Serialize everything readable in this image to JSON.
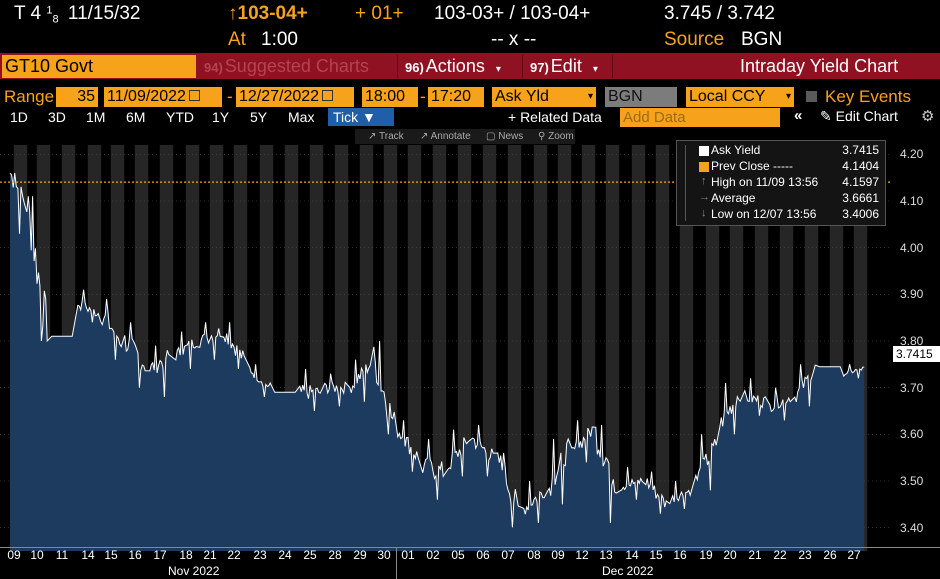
{
  "ticker": {
    "security": "T 4",
    "coupon_frac_num": "1",
    "coupon_frac_den": "8",
    "maturity": "11/15/32",
    "price": "↑103-04+",
    "time_label": "At",
    "time": "1:00",
    "change": "+ 01+",
    "bid_ask": "103-03+ / 103-04+",
    "size": "-- x --",
    "yields": "3.745 / 3.742",
    "source_label": "Source",
    "source": "BGN"
  },
  "titlebar": {
    "security_input": "GT10 Govt",
    "suggested_num": "94)",
    "suggested_label": "Suggested Charts",
    "actions_num": "96)",
    "actions_label": "Actions",
    "edit_num": "97)",
    "edit_label": "Edit",
    "chart_title": "Intraday Yield Chart"
  },
  "range": {
    "label": "Range",
    "interval": "35",
    "start_date": "11/09/2022",
    "dash": "-",
    "end_date": "12/27/2022",
    "start_time": "18:00",
    "end_time": "17:20",
    "field": "Ask Yld",
    "source": "BGN",
    "currency": "Local CCY",
    "key_events": "Key Events"
  },
  "periods": [
    "1D",
    "3D",
    "1M",
    "6M",
    "YTD",
    "1Y",
    "5Y",
    "Max"
  ],
  "selected_period": "Tick ▼",
  "related_data": "+ Related Data",
  "add_data_placeholder": "Add Data",
  "edit_chart": "Edit Chart",
  "toolbar2": [
    "Track",
    "Annotate",
    "News",
    "Zoom"
  ],
  "legend": {
    "rows": [
      {
        "name": "Ask Yield",
        "value": "3.7415"
      },
      {
        "name": "Prev Close -----",
        "value": "4.1404"
      },
      {
        "name": "High on 11/09 13:56",
        "value": "4.1597"
      },
      {
        "name": "Average",
        "value": "3.6661"
      },
      {
        "name": "Low on 12/07 13:56",
        "value": "3.4006"
      }
    ]
  },
  "last_value_label": "3.7415",
  "colors": {
    "accent_orange": "#f7a21b",
    "titlebar_red": "#8f1222",
    "area_fill": "#1c3b5f",
    "session_bg": "#262626",
    "grid": "#4a4a4a",
    "selected_blue": "#1f5fa8"
  },
  "chart_data": {
    "type": "area",
    "title": "Intraday Yield Chart",
    "ylabel": "",
    "ylim": [
      3.35,
      4.22
    ],
    "y_ticks": [
      "4.20",
      "4.10",
      "4.00",
      "3.90",
      "3.80",
      "3.70",
      "3.60",
      "3.50",
      "3.40"
    ],
    "reference_line": {
      "name": "Prev Close",
      "value": 4.1404
    },
    "x_tick_labels": [
      "09",
      "10",
      "11",
      "14",
      "15",
      "16",
      "17",
      "18",
      "21",
      "22",
      "23",
      "24",
      "25",
      "28",
      "29",
      "30",
      "01",
      "02",
      "05",
      "06",
      "07",
      "08",
      "09",
      "12",
      "13",
      "14",
      "15",
      "16",
      "19",
      "20",
      "21",
      "22",
      "23",
      "26",
      "27"
    ],
    "month_labels": [
      "Nov 2022",
      "Dec 2022"
    ],
    "series": [
      {
        "name": "Ask Yield",
        "values_by_day": [
          {
            "date": "11/09",
            "open": 4.16,
            "close": 4.1,
            "high": 4.1597,
            "low": 4.03
          },
          {
            "date": "11/10",
            "open": 4.1,
            "close": 3.82,
            "high": 4.11,
            "low": 3.8
          },
          {
            "date": "11/11",
            "open": 3.81,
            "close": 3.81,
            "high": 3.81,
            "low": 3.81
          },
          {
            "date": "11/14",
            "open": 3.88,
            "close": 3.86,
            "high": 3.91,
            "low": 3.84
          },
          {
            "date": "11/15",
            "open": 3.86,
            "close": 3.8,
            "high": 3.89,
            "low": 3.76
          },
          {
            "date": "11/16",
            "open": 3.8,
            "close": 3.75,
            "high": 3.84,
            "low": 3.7
          },
          {
            "date": "11/17",
            "open": 3.74,
            "close": 3.77,
            "high": 3.79,
            "low": 3.68
          },
          {
            "date": "11/18",
            "open": 3.77,
            "close": 3.8,
            "high": 3.82,
            "low": 3.74
          },
          {
            "date": "11/21",
            "open": 3.8,
            "close": 3.82,
            "high": 3.84,
            "low": 3.76
          },
          {
            "date": "11/22",
            "open": 3.82,
            "close": 3.76,
            "high": 3.84,
            "low": 3.74
          },
          {
            "date": "11/23",
            "open": 3.74,
            "close": 3.7,
            "high": 3.75,
            "low": 3.68
          },
          {
            "date": "11/24",
            "open": 3.69,
            "close": 3.69,
            "high": 3.69,
            "low": 3.69
          },
          {
            "date": "11/25",
            "open": 3.69,
            "close": 3.69,
            "high": 3.74,
            "low": 3.65
          },
          {
            "date": "11/28",
            "open": 3.7,
            "close": 3.7,
            "high": 3.73,
            "low": 3.66
          },
          {
            "date": "11/29",
            "open": 3.7,
            "close": 3.75,
            "high": 3.76,
            "low": 3.67
          },
          {
            "date": "11/30",
            "open": 3.76,
            "close": 3.62,
            "high": 3.8,
            "low": 3.6
          },
          {
            "date": "12/01",
            "open": 3.61,
            "close": 3.55,
            "high": 3.63,
            "low": 3.52
          },
          {
            "date": "12/02",
            "open": 3.53,
            "close": 3.52,
            "high": 3.59,
            "low": 3.46
          },
          {
            "date": "12/05",
            "open": 3.53,
            "close": 3.59,
            "high": 3.61,
            "low": 3.51
          },
          {
            "date": "12/06",
            "open": 3.59,
            "close": 3.55,
            "high": 3.62,
            "low": 3.51
          },
          {
            "date": "12/07",
            "open": 3.55,
            "close": 3.44,
            "high": 3.56,
            "low": 3.4006
          },
          {
            "date": "12/08",
            "open": 3.44,
            "close": 3.48,
            "high": 3.5,
            "low": 3.41
          },
          {
            "date": "12/09",
            "open": 3.48,
            "close": 3.57,
            "high": 3.59,
            "low": 3.45
          },
          {
            "date": "12/12",
            "open": 3.56,
            "close": 3.61,
            "high": 3.63,
            "low": 3.54
          },
          {
            "date": "12/13",
            "open": 3.6,
            "close": 3.5,
            "high": 3.62,
            "low": 3.41
          },
          {
            "date": "12/14",
            "open": 3.49,
            "close": 3.5,
            "high": 3.53,
            "low": 3.46
          },
          {
            "date": "12/15",
            "open": 3.5,
            "close": 3.45,
            "high": 3.52,
            "low": 3.43
          },
          {
            "date": "12/16",
            "open": 3.46,
            "close": 3.48,
            "high": 3.5,
            "low": 3.44
          },
          {
            "date": "12/19",
            "open": 3.5,
            "close": 3.58,
            "high": 3.6,
            "low": 3.48
          },
          {
            "date": "12/20",
            "open": 3.62,
            "close": 3.69,
            "high": 3.71,
            "low": 3.6
          },
          {
            "date": "12/21",
            "open": 3.68,
            "close": 3.67,
            "high": 3.72,
            "low": 3.64
          },
          {
            "date": "12/22",
            "open": 3.66,
            "close": 3.68,
            "high": 3.7,
            "low": 3.63
          },
          {
            "date": "12/23",
            "open": 3.68,
            "close": 3.74,
            "high": 3.75,
            "low": 3.66
          },
          {
            "date": "12/26",
            "open": 3.745,
            "close": 3.745,
            "high": 3.745,
            "low": 3.745
          },
          {
            "date": "12/27",
            "open": 3.73,
            "close": 3.7415,
            "high": 3.75,
            "low": 3.72
          }
        ]
      }
    ],
    "grid": true,
    "legend_position": "top-right"
  }
}
